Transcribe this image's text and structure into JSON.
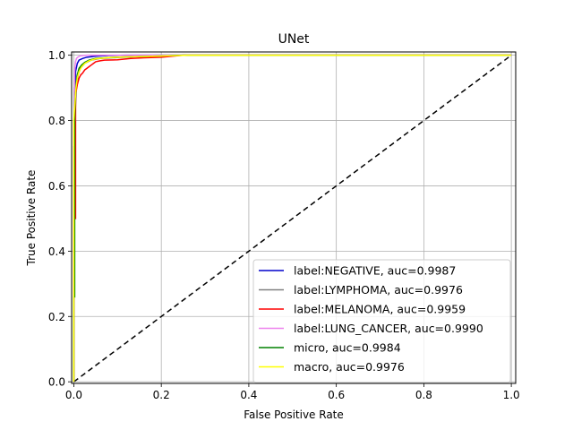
{
  "chart_data": {
    "type": "line",
    "title": "UNet",
    "xlabel": "False Positive Rate",
    "ylabel": "True Positive Rate",
    "xlim": [
      -0.005,
      1.01
    ],
    "ylim": [
      -0.005,
      1.01
    ],
    "xticks": [
      "0.0",
      "0.2",
      "0.4",
      "0.6",
      "0.8",
      "1.0"
    ],
    "yticks": [
      "0.0",
      "0.2",
      "0.4",
      "0.6",
      "0.8",
      "1.0"
    ],
    "grid": true,
    "legend_position": "lower right",
    "series": [
      {
        "name": "label:NEGATIVE, auc=0.9987",
        "color": "#0000cc",
        "x": [
          0,
          0,
          0.002,
          0.002,
          0.004,
          0.004,
          0.008,
          0.012,
          0.02,
          0.03,
          0.05,
          0.08,
          0.12,
          1.0
        ],
        "y": [
          0,
          0.72,
          0.72,
          0.9,
          0.9,
          0.95,
          0.975,
          0.985,
          0.99,
          0.994,
          0.997,
          0.999,
          1.0,
          1.0
        ]
      },
      {
        "name": "label:LYMPHOMA, auc=0.9976",
        "color": "#808080",
        "x": [
          0,
          0,
          0.003,
          0.003,
          0.006,
          0.01,
          0.015,
          0.025,
          0.04,
          0.06,
          0.1,
          0.15,
          0.2,
          1.0
        ],
        "y": [
          0,
          0.5,
          0.5,
          0.82,
          0.9,
          0.94,
          0.96,
          0.975,
          0.985,
          0.99,
          0.993,
          0.996,
          1.0,
          1.0
        ]
      },
      {
        "name": "label:MELANOMA, auc=0.9959",
        "color": "#ff0000",
        "x": [
          0,
          0,
          0.004,
          0.004,
          0.008,
          0.012,
          0.016,
          0.02,
          0.025,
          0.03,
          0.035,
          0.04,
          0.045,
          0.05,
          0.06,
          0.07,
          0.1,
          0.13,
          0.16,
          0.2,
          0.25,
          1.0
        ],
        "y": [
          0,
          0.5,
          0.5,
          0.88,
          0.91,
          0.93,
          0.94,
          0.945,
          0.955,
          0.96,
          0.965,
          0.97,
          0.975,
          0.98,
          0.983,
          0.985,
          0.986,
          0.99,
          0.992,
          0.994,
          1.0,
          1.0
        ]
      },
      {
        "name": "label:LUNG_CANCER, auc=0.9990",
        "color": "#ee82ee",
        "x": [
          0,
          0,
          0.002,
          0.002,
          0.004,
          0.006,
          0.01,
          0.015,
          0.03,
          1.0
        ],
        "y": [
          0,
          0.8,
          0.8,
          0.95,
          0.98,
          0.99,
          0.995,
          0.998,
          1.0,
          1.0
        ]
      },
      {
        "name": "micro, auc=0.9984",
        "color": "#008000",
        "x": [
          0,
          0,
          0.002,
          0.002,
          0.004,
          0.006,
          0.008,
          0.012,
          0.018,
          0.025,
          0.035,
          0.05,
          0.08,
          0.12,
          0.18,
          0.25,
          1.0
        ],
        "y": [
          0,
          0.26,
          0.26,
          0.81,
          0.88,
          0.92,
          0.94,
          0.96,
          0.97,
          0.978,
          0.985,
          0.99,
          0.993,
          0.995,
          0.997,
          1.0,
          1.0
        ]
      },
      {
        "name": "macro, auc=0.9976",
        "color": "#ffff00",
        "x": [
          0,
          0,
          0.003,
          0.005,
          0.008,
          0.012,
          0.018,
          0.025,
          0.035,
          0.05,
          0.08,
          0.12,
          0.18,
          0.26,
          1.0
        ],
        "y": [
          0,
          0.8,
          0.86,
          0.9,
          0.93,
          0.95,
          0.965,
          0.975,
          0.983,
          0.989,
          0.993,
          0.995,
          0.997,
          1.0,
          1.0
        ]
      },
      {
        "name": "",
        "color": "#000000",
        "dashed": true,
        "x": [
          0,
          1
        ],
        "y": [
          0,
          1
        ]
      }
    ]
  }
}
